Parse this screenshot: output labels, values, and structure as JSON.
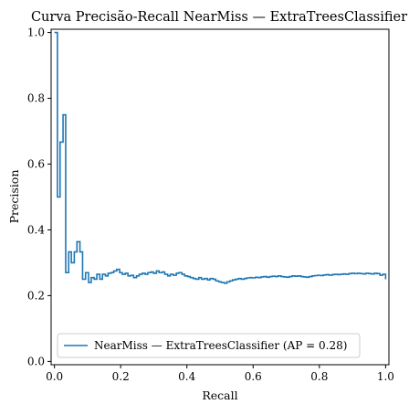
{
  "chart_data": {
    "type": "line",
    "title": "Curva Precisão-Recall NearMiss — ExtraTreesClassifier",
    "xlabel": "Recall",
    "ylabel": "Precision",
    "xlim": [
      -0.01,
      1.01
    ],
    "ylim": [
      -0.01,
      1.01
    ],
    "xticks": [
      "0.0",
      "0.2",
      "0.4",
      "0.6",
      "0.8",
      "1.0"
    ],
    "yticks": [
      "0.0",
      "0.2",
      "0.4",
      "0.6",
      "0.8",
      "1.0"
    ],
    "grid": false,
    "legend_position": "lower-left",
    "series": [
      {
        "name": "NearMiss — ExtraTreesClassifier (AP = 0.28)",
        "color": "#1f77b4",
        "drawstyle": "steps-post",
        "x": [
          0.0,
          0.009,
          0.017,
          0.026,
          0.034,
          0.043,
          0.051,
          0.06,
          0.068,
          0.077,
          0.085,
          0.094,
          0.103,
          0.111,
          0.12,
          0.128,
          0.137,
          0.145,
          0.154,
          0.162,
          0.171,
          0.179,
          0.188,
          0.197,
          0.205,
          0.214,
          0.222,
          0.231,
          0.239,
          0.248,
          0.256,
          0.265,
          0.274,
          0.282,
          0.291,
          0.299,
          0.308,
          0.316,
          0.325,
          0.333,
          0.342,
          0.35,
          0.359,
          0.368,
          0.376,
          0.385,
          0.393,
          0.402,
          0.41,
          0.419,
          0.427,
          0.436,
          0.444,
          0.453,
          0.462,
          0.47,
          0.479,
          0.487,
          0.496,
          0.504,
          0.513,
          0.521,
          0.53,
          0.538,
          0.547,
          0.556,
          0.564,
          0.573,
          0.581,
          0.59,
          0.598,
          0.607,
          0.615,
          0.624,
          0.632,
          0.641,
          0.65,
          0.658,
          0.667,
          0.675,
          0.684,
          0.692,
          0.701,
          0.709,
          0.718,
          0.726,
          0.735,
          0.744,
          0.752,
          0.761,
          0.769,
          0.778,
          0.786,
          0.795,
          0.803,
          0.812,
          0.821,
          0.829,
          0.838,
          0.846,
          0.855,
          0.863,
          0.872,
          0.88,
          0.889,
          0.897,
          0.906,
          0.915,
          0.923,
          0.932,
          0.94,
          0.949,
          0.957,
          0.966,
          0.974,
          0.983,
          0.991,
          1.0
        ],
        "y": [
          1.0,
          0.5,
          0.667,
          0.75,
          0.27,
          0.333,
          0.3,
          0.333,
          0.364,
          0.333,
          0.25,
          0.27,
          0.24,
          0.255,
          0.25,
          0.265,
          0.25,
          0.265,
          0.26,
          0.268,
          0.27,
          0.275,
          0.28,
          0.27,
          0.265,
          0.268,
          0.26,
          0.262,
          0.255,
          0.26,
          0.265,
          0.268,
          0.265,
          0.27,
          0.272,
          0.268,
          0.275,
          0.27,
          0.272,
          0.265,
          0.26,
          0.265,
          0.262,
          0.268,
          0.27,
          0.265,
          0.26,
          0.258,
          0.255,
          0.252,
          0.25,
          0.255,
          0.25,
          0.252,
          0.248,
          0.252,
          0.25,
          0.245,
          0.242,
          0.24,
          0.238,
          0.242,
          0.245,
          0.248,
          0.25,
          0.252,
          0.25,
          0.252,
          0.254,
          0.255,
          0.254,
          0.256,
          0.255,
          0.257,
          0.258,
          0.256,
          0.258,
          0.259,
          0.258,
          0.26,
          0.258,
          0.257,
          0.256,
          0.258,
          0.26,
          0.259,
          0.26,
          0.258,
          0.257,
          0.256,
          0.258,
          0.26,
          0.261,
          0.262,
          0.261,
          0.263,
          0.264,
          0.262,
          0.264,
          0.265,
          0.264,
          0.265,
          0.266,
          0.265,
          0.267,
          0.268,
          0.267,
          0.268,
          0.267,
          0.266,
          0.268,
          0.267,
          0.266,
          0.268,
          0.267,
          0.262,
          0.265,
          0.25
        ]
      }
    ]
  }
}
